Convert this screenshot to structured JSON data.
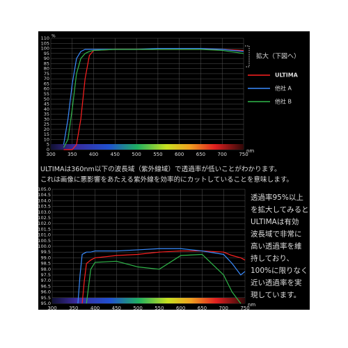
{
  "chart_data": [
    {
      "type": "line",
      "y_unit": "%",
      "x_unit": "nm",
      "annotation": "拡大（下図へ）",
      "xlim": [
        300,
        750
      ],
      "xticks": [
        300,
        350,
        400,
        450,
        500,
        550,
        600,
        650,
        700,
        750
      ],
      "ylim": [
        0,
        110
      ],
      "yticks": [
        0,
        5,
        10,
        15,
        20,
        25,
        30,
        35,
        40,
        45,
        50,
        55,
        60,
        65,
        70,
        75,
        80,
        85,
        90,
        95,
        100,
        105,
        110
      ],
      "grid": true,
      "x": [
        330,
        340,
        350,
        360,
        370,
        380,
        390,
        400,
        450,
        500,
        550,
        600,
        650,
        700,
        750
      ],
      "series": [
        {
          "name": "ULTIMA",
          "color": "#ff2020",
          "values": [
            0,
            0,
            0,
            5,
            30,
            70,
            93,
            98,
            99,
            99,
            99,
            99,
            99,
            99,
            98
          ]
        },
        {
          "name": "他社 A",
          "color": "#3a8cff",
          "values": [
            5,
            30,
            65,
            90,
            97,
            99,
            99,
            99,
            99,
            99,
            100,
            100,
            100,
            99,
            97
          ]
        },
        {
          "name": "他社 B",
          "color": "#2fb84a",
          "values": [
            2,
            10,
            40,
            75,
            90,
            95,
            97,
            98,
            99,
            99,
            99,
            99,
            99,
            98,
            95
          ]
        }
      ]
    },
    {
      "type": "line",
      "x_unit": "nm",
      "xlim": [
        300,
        750
      ],
      "xticks": [
        300,
        350,
        400,
        450,
        500,
        550,
        600,
        650,
        700,
        750
      ],
      "ylim": [
        95,
        105
      ],
      "yticks": [
        {
          "value": 95,
          "label": "95.0"
        },
        95.5,
        {
          "value": 96,
          "label": "96.0"
        },
        96.5,
        {
          "value": 97,
          "label": "97.0"
        },
        97.5,
        {
          "value": 98,
          "label": "98.0"
        },
        98.5,
        {
          "value": 99,
          "label": "99.0"
        },
        99.5,
        {
          "value": 100,
          "label": "100.0"
        },
        100.5,
        {
          "value": 101,
          "label": "101.0"
        },
        101.5,
        {
          "value": 102,
          "label": "102.0"
        },
        102.5,
        {
          "value": 103,
          "label": "103.0"
        },
        103.5,
        {
          "value": 104,
          "label": "104.0"
        },
        104.5,
        {
          "value": 105,
          "label": "105.0"
        }
      ],
      "grid": true,
      "x": [
        360,
        365,
        370,
        375,
        380,
        390,
        400,
        450,
        500,
        550,
        600,
        650,
        700,
        720,
        740,
        750
      ],
      "series": [
        {
          "name": "ULTIMA",
          "color": "#ff2020",
          "values": [
            null,
            null,
            95,
            97,
            98.5,
            98.8,
            99,
            99.2,
            99.3,
            99.5,
            99.6,
            99.6,
            99.5,
            99.2,
            99,
            98.8
          ]
        },
        {
          "name": "他社 A",
          "color": "#3a8cff",
          "values": [
            95,
            97.5,
            99.3,
            99.4,
            99.5,
            99.5,
            99.6,
            99.6,
            99.7,
            99.8,
            99.8,
            99.6,
            99.3,
            98.5,
            97.5,
            97.8
          ]
        },
        {
          "name": "他社 B",
          "color": "#2fb84a",
          "values": [
            null,
            null,
            null,
            null,
            95,
            98,
            98.6,
            98.7,
            98.2,
            98,
            99.2,
            99.3,
            97.5,
            96,
            95,
            null
          ]
        }
      ]
    }
  ],
  "caption": [
    "ULTIMAは360nm以下の波長域（紫外線域）で透過率が低いことがわかります。",
    "これは画像に悪影響をあたえる紫外線を効率的にカットしていることを意味します。"
  ],
  "side_text": [
    "透過率95%以上",
    "を拡大してみると",
    "ULTIMAは有効",
    "波長域で非常に",
    "高い透過率を維",
    "持しており、",
    "100%に限りなく",
    "近い透過率を実",
    "現しています。"
  ]
}
